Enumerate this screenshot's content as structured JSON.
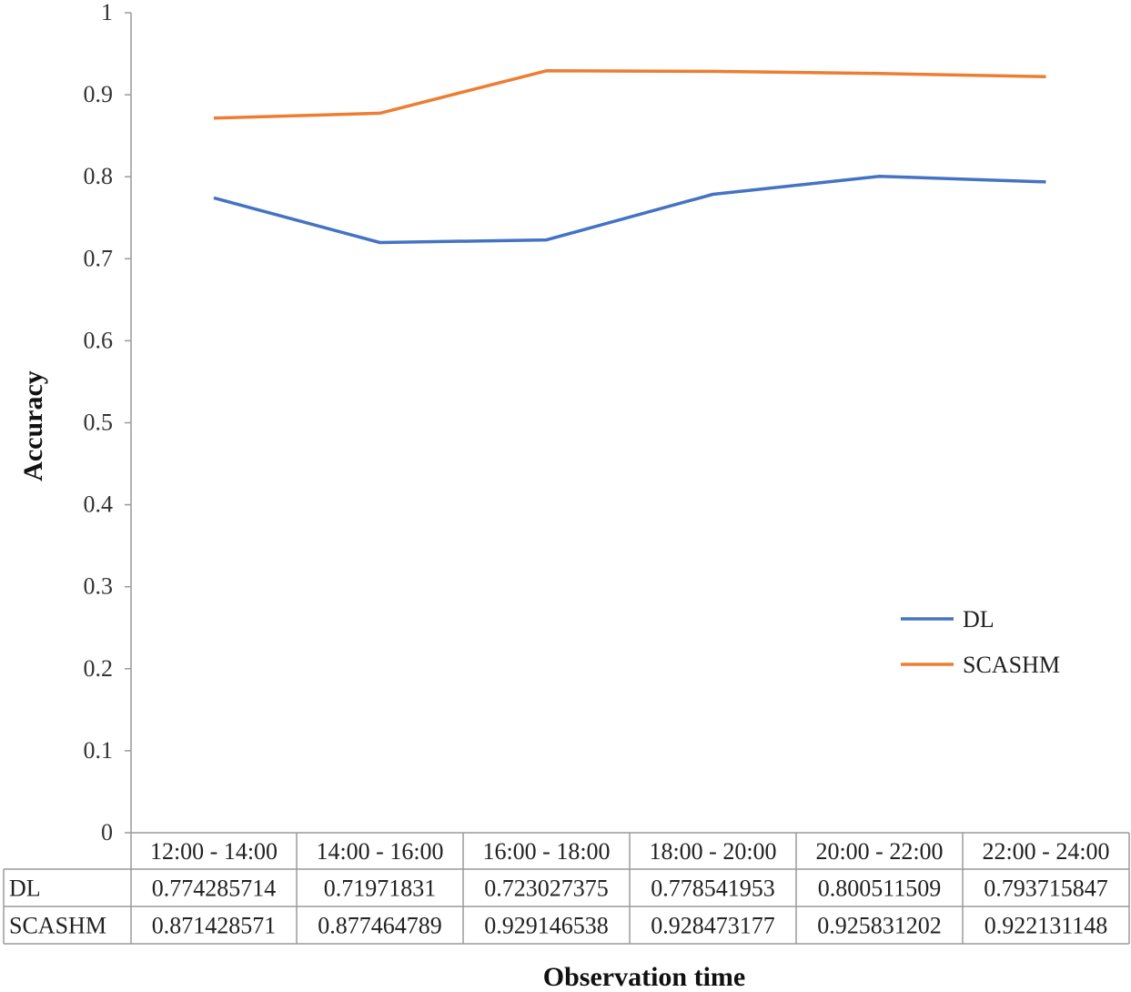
{
  "chart_data": {
    "type": "line",
    "title": "",
    "xlabel": "Observation time",
    "ylabel": "Accuracy",
    "ylim": [
      0,
      1
    ],
    "yticks": [
      "0",
      "0.1",
      "0.2",
      "0.3",
      "0.4",
      "0.5",
      "0.6",
      "0.7",
      "0.8",
      "0.9",
      "1"
    ],
    "categories": [
      "12:00 - 14:00",
      "14:00 - 16:00",
      "16:00 - 18:00",
      "18:00 - 20:00",
      "20:00 - 22:00",
      "22:00 - 24:00"
    ],
    "series": [
      {
        "name": "DL",
        "color": "#4472C4",
        "values": [
          0.774285714,
          0.71971831,
          0.723027375,
          0.778541953,
          0.800511509,
          0.793715847
        ],
        "labels": [
          "0.774285714",
          "0.71971831",
          "0.723027375",
          "0.778541953",
          "0.800511509",
          "0.793715847"
        ]
      },
      {
        "name": "SCASHM",
        "color": "#ED7D31",
        "values": [
          0.871428571,
          0.877464789,
          0.929146538,
          0.928473177,
          0.925831202,
          0.922131148
        ],
        "labels": [
          "0.871428571",
          "0.877464789",
          "0.929146538",
          "0.928473177",
          "0.925831202",
          "0.922131148"
        ]
      }
    ],
    "grid": false,
    "legend_position": "right",
    "data_table": true
  }
}
